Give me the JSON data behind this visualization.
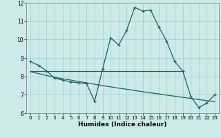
{
  "xlabel": "Humidex (Indice chaleur)",
  "background_color": "#cceaea",
  "grid_color": "#99cccc",
  "line_color": "#1a6060",
  "xlim": [
    -0.5,
    23.5
  ],
  "ylim": [
    6,
    12
  ],
  "yticks": [
    6,
    7,
    8,
    9,
    10,
    11,
    12
  ],
  "xticks": [
    0,
    1,
    2,
    3,
    4,
    5,
    6,
    7,
    8,
    9,
    10,
    11,
    12,
    13,
    14,
    15,
    16,
    17,
    18,
    19,
    20,
    21,
    22,
    23
  ],
  "line1_x": [
    0,
    1,
    2,
    3,
    4,
    5,
    6,
    7,
    8,
    9,
    10,
    11,
    12,
    13,
    14,
    15,
    16,
    17,
    18,
    19,
    20,
    21,
    22,
    23
  ],
  "line1_y": [
    8.8,
    8.6,
    8.3,
    7.9,
    7.8,
    7.7,
    7.65,
    7.6,
    6.65,
    8.4,
    10.1,
    9.7,
    10.5,
    11.75,
    11.55,
    11.6,
    10.7,
    9.9,
    8.8,
    8.3,
    6.9,
    6.3,
    6.55,
    7.0
  ],
  "line2_x": [
    0,
    19
  ],
  "line2_y": [
    8.3,
    8.3
  ],
  "line3_x": [
    0,
    1,
    2,
    3,
    4,
    5,
    6,
    7,
    8,
    9,
    10,
    11,
    12,
    13,
    14,
    15,
    16,
    17,
    18,
    19,
    20,
    21,
    22,
    23
  ],
  "line3_y": [
    8.25,
    8.15,
    8.05,
    7.95,
    7.87,
    7.8,
    7.72,
    7.65,
    7.57,
    7.5,
    7.43,
    7.36,
    7.3,
    7.23,
    7.17,
    7.1,
    7.05,
    6.98,
    6.92,
    6.86,
    6.8,
    6.74,
    6.68,
    6.62
  ]
}
